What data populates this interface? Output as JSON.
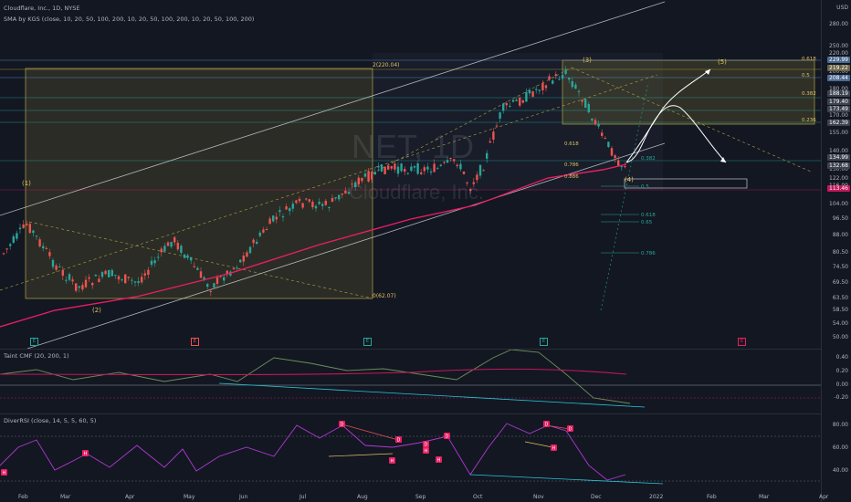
{
  "header": {
    "title": "Cloudflare, Inc., 1D, NYSE",
    "indicator": "SMA by KGS (close, 10, 20, 50, 100, 200, 10, 20, 50, 100, 200, 10, 20, 50, 100, 200)",
    "currency": "USD"
  },
  "watermark": {
    "ticker": "NET, 1D",
    "name": "Cloudflare, Inc."
  },
  "price_axis": {
    "ticks": [
      "280.00",
      "250.00",
      "220.00",
      "200.00",
      "180.00",
      "170.00",
      "155.00",
      "140.00",
      "130.00",
      "122.00",
      "116.00",
      "104.00",
      "96.50",
      "88.00",
      "80.50",
      "74.50",
      "69.50",
      "63.50",
      "58.50",
      "54.00",
      "50.00"
    ],
    "tags": [
      {
        "text": "229.99",
        "color": "#4b6a91"
      },
      {
        "text": "219.22",
        "color": "#6b6446"
      },
      {
        "text": "208.44",
        "color": "#4b6a91"
      },
      {
        "text": "188.19",
        "color": "#3d4250"
      },
      {
        "text": "179.40",
        "color": "#3d4250"
      },
      {
        "text": "173.49",
        "color": "#3d4250"
      },
      {
        "text": "162.39",
        "color": "#3d4250"
      },
      {
        "text": "134.99",
        "color": "#3d4250"
      },
      {
        "text": "132.68",
        "color": "#3d4250"
      },
      {
        "text": "113.46",
        "color": "#c2185b"
      }
    ]
  },
  "time_axis": [
    "Feb",
    "Mar",
    "Apr",
    "May",
    "Jun",
    "Jul",
    "Aug",
    "Sep",
    "Oct",
    "Nov",
    "Dec",
    "2022",
    "Feb",
    "Mar",
    "Apr"
  ],
  "annotations": {
    "fib_top": "2(220.04)",
    "fib_bottom": "0(62.07)",
    "waves": [
      "(1)",
      "(2)",
      "(3)",
      "(4)",
      "(5)"
    ],
    "fib_left": [
      "0.618",
      "0.5",
      "0.382",
      "0.236"
    ],
    "fib_mid": [
      "0.618",
      "0.786",
      "0.886"
    ],
    "fib_lower": [
      "0.5",
      "0.618",
      "0.65",
      "0.786"
    ],
    "fib_upper": [
      "0.382"
    ],
    "events": [
      "E",
      "E",
      "E",
      "E",
      "E"
    ]
  },
  "cmf": {
    "title": "Taint CMF (20, 200, 1)",
    "ticks": [
      "0.40",
      "0.20",
      "0.00",
      "-0.20"
    ]
  },
  "rsi": {
    "title": "DiverRSI (close, 14, 5, 5, 60, 5)",
    "ticks": [
      "80.00",
      "60.00",
      "40.00"
    ],
    "labels": [
      "H",
      "H",
      "D",
      "D",
      "D",
      "D",
      "H",
      "H",
      "H",
      "D",
      "D",
      "H"
    ]
  },
  "colors": {
    "background": "#131722",
    "candle_up": "#26a69a",
    "candle_down": "#ef5350",
    "sma": "#e91e63",
    "channel": "#e0e3eb",
    "fib_box": "#b5a642",
    "cmf_line": "#6b8e5a",
    "rsi_line": "#b039d3"
  }
}
